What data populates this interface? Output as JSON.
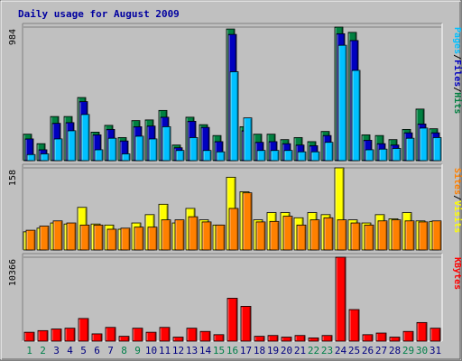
{
  "chart_data": {
    "type": "bar",
    "title": "Daily usage for August 2009",
    "days": [
      "1",
      "2",
      "3",
      "4",
      "5",
      "6",
      "7",
      "8",
      "9",
      "10",
      "11",
      "12",
      "13",
      "14",
      "15",
      "16",
      "17",
      "18",
      "19",
      "20",
      "21",
      "22",
      "23",
      "24",
      "25",
      "26",
      "27",
      "28",
      "29",
      "30",
      "31"
    ],
    "weekend_days": [
      "1",
      "2",
      "8",
      "9",
      "15",
      "16",
      "22",
      "23",
      "29",
      "30"
    ],
    "colors": {
      "hits": "#008040",
      "files": "#0000c0",
      "pages": "#00c0ff",
      "visits": "#ffff00",
      "sites": "#ff8000",
      "kbytes": "#ff0000",
      "weekday_label": "#000080",
      "weekend_label": "#00804a"
    },
    "panels": [
      {
        "id": "hits-files-pages",
        "max_label": "984",
        "max": 984,
        "legend": [
          {
            "label": "Pages",
            "color": "#00c0ff"
          },
          {
            "label": "/",
            "color": "#000000"
          },
          {
            "label": "Files",
            "color": "#0000c0"
          },
          {
            "label": "/",
            "color": "#000000"
          },
          {
            "label": "Hits",
            "color": "#008040"
          }
        ],
        "series": [
          {
            "name": "Hits",
            "color": "#008040",
            "values": [
              195,
              125,
              325,
              325,
              465,
              210,
              260,
              170,
              295,
              300,
              370,
              115,
              320,
              265,
              185,
              970,
              250,
              195,
              195,
              155,
              170,
              140,
              215,
              984,
              945,
              190,
              185,
              155,
              230,
              380,
              235
            ]
          },
          {
            "name": "Files",
            "color": "#0000c0",
            "values": [
              160,
              80,
              275,
              280,
              435,
              190,
              230,
              145,
              250,
              255,
              320,
              95,
              290,
              245,
              140,
              930,
              220,
              135,
              140,
              125,
              115,
              110,
              185,
              935,
              885,
              150,
              125,
              115,
              205,
              270,
              205
            ]
          },
          {
            "name": "Pages",
            "color": "#00c0ff",
            "values": [
              45,
              50,
              160,
              220,
              340,
              80,
              165,
              50,
              180,
              160,
              250,
              75,
              170,
              75,
              65,
              655,
              315,
              75,
              75,
              75,
              65,
              65,
              135,
              850,
              665,
              80,
              85,
              90,
              165,
              240,
              170
            ]
          }
        ]
      },
      {
        "id": "visits-sites",
        "max_label": "158",
        "max": 158,
        "legend": [
          {
            "label": "Sites",
            "color": "#ff8000"
          },
          {
            "label": "/",
            "color": "#000000"
          },
          {
            "label": "Visits",
            "color": "#ffff00"
          }
        ],
        "series": [
          {
            "name": "Visits",
            "color": "#ffff00",
            "values": [
              35,
              42,
              52,
              50,
              82,
              50,
              48,
              40,
              52,
              68,
              88,
              52,
              80,
              58,
              48,
              140,
              112,
              58,
              72,
              72,
              62,
              72,
              68,
              158,
              58,
              52,
              68,
              60,
              72,
              56,
              55
            ]
          },
          {
            "name": "Sites",
            "color": "#ff8000",
            "values": [
              38,
              46,
              56,
              52,
              48,
              48,
              40,
              42,
              44,
              44,
              58,
              58,
              64,
              54,
              48,
              80,
              110,
              54,
              55,
              65,
              48,
              58,
              62,
              58,
              52,
              48,
              56,
              58,
              56,
              54,
              56
            ]
          }
        ]
      },
      {
        "id": "kbytes",
        "max_label": "10366",
        "max": 10366,
        "legend": [
          {
            "label": "KBytes",
            "color": "#ff0000"
          }
        ],
        "series": [
          {
            "name": "KBytes",
            "color": "#ff0000",
            "values": [
              1100,
              1300,
              1500,
              1600,
              2800,
              900,
              1700,
              600,
              1600,
              1100,
              1700,
              500,
              1600,
              1200,
              800,
              5300,
              4300,
              600,
              700,
              500,
              700,
              400,
              700,
              10366,
              3900,
              800,
              1000,
              500,
              1200,
              2300,
              1600
            ]
          }
        ]
      }
    ]
  }
}
